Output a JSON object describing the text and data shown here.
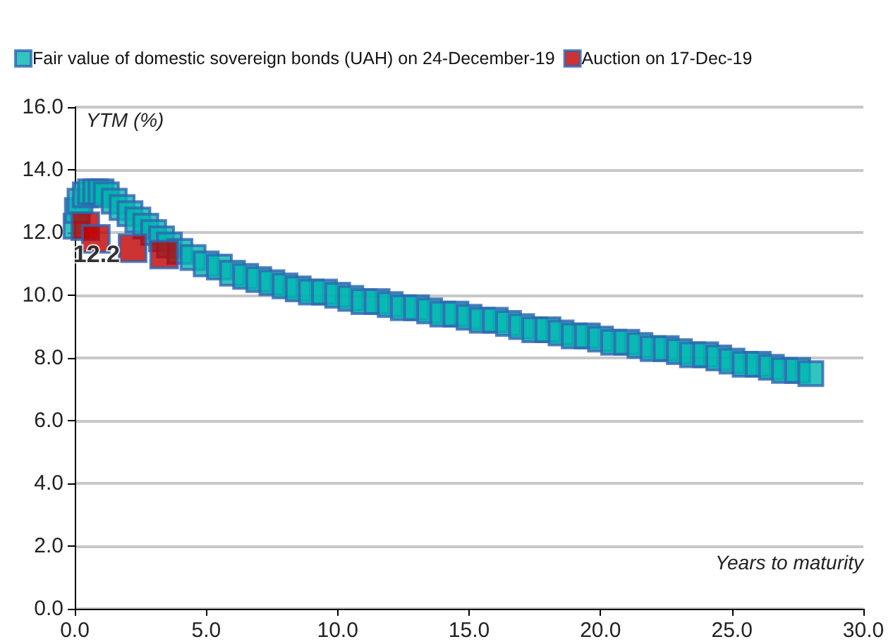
{
  "chart_data": {
    "type": "scatter",
    "xlabel": "Years to maturity",
    "ylabel": "YTM (%)",
    "xlim": [
      0,
      30
    ],
    "xticks": [
      {
        "value": 0,
        "label": "0.0"
      },
      {
        "value": 5,
        "label": "5.0"
      },
      {
        "value": 10,
        "label": "10.0"
      },
      {
        "value": 15,
        "label": "15.0"
      },
      {
        "value": 20,
        "label": "20.0"
      },
      {
        "value": 25,
        "label": "25.0"
      },
      {
        "value": 30,
        "label": "30.0"
      }
    ],
    "ylim": [
      0,
      16
    ],
    "yticks": [
      {
        "value": 0,
        "label": "0.0"
      },
      {
        "value": 2,
        "label": "2.0"
      },
      {
        "value": 4,
        "label": "4.0"
      },
      {
        "value": 6,
        "label": "6.0"
      },
      {
        "value": 8,
        "label": "8.0"
      },
      {
        "value": 10,
        "label": "10.0"
      },
      {
        "value": 12,
        "label": "12.0"
      },
      {
        "value": 14,
        "label": "14.0"
      },
      {
        "value": 16,
        "label": "16.0"
      }
    ],
    "grid": "y",
    "legend": "top left",
    "marker": "square",
    "series": [
      {
        "name": "Fair value of domestic sovereign bonds (UAH) on 24-December-19",
        "color": "#00b5b0",
        "x": [
          0.05,
          0.1,
          0.2,
          0.4,
          0.6,
          0.8,
          1.0,
          1.2,
          1.5,
          1.8,
          2.1,
          2.4,
          2.7,
          3.0,
          3.3,
          3.6,
          4.0,
          4.5,
          5.0,
          5.5,
          6.0,
          6.5,
          7.0,
          7.5,
          8.0,
          8.5,
          9.0,
          9.5,
          10.0,
          10.5,
          11.0,
          11.5,
          12.0,
          12.5,
          13.0,
          13.5,
          14.0,
          14.5,
          15.0,
          15.5,
          16.0,
          16.5,
          17.0,
          17.5,
          18.0,
          18.5,
          19.0,
          19.5,
          20.0,
          20.5,
          21.0,
          21.5,
          22.0,
          22.5,
          23.0,
          23.5,
          24.0,
          24.5,
          25.0,
          25.5,
          26.0,
          26.5,
          27.0,
          27.5,
          28.0
        ],
        "values": [
          12.2,
          12.7,
          13.0,
          13.2,
          13.3,
          13.3,
          13.3,
          13.2,
          13.0,
          12.8,
          12.6,
          12.4,
          12.2,
          12.0,
          11.8,
          11.6,
          11.4,
          11.2,
          11.0,
          10.9,
          10.7,
          10.6,
          10.5,
          10.4,
          10.3,
          10.2,
          10.1,
          10.1,
          10.0,
          9.9,
          9.8,
          9.8,
          9.7,
          9.6,
          9.6,
          9.5,
          9.4,
          9.4,
          9.3,
          9.2,
          9.2,
          9.1,
          9.0,
          8.9,
          8.9,
          8.8,
          8.7,
          8.7,
          8.6,
          8.5,
          8.5,
          8.4,
          8.3,
          8.3,
          8.2,
          8.1,
          8.1,
          8.0,
          7.9,
          7.8,
          7.8,
          7.7,
          7.6,
          7.6,
          7.5
        ]
      },
      {
        "name": "Auction on 17-Dec-19",
        "color": "#c00000",
        "x": [
          0.4,
          0.8,
          2.2,
          3.4
        ],
        "values": [
          12.2,
          11.8,
          11.5,
          11.3
        ]
      }
    ],
    "annotations": [
      {
        "text": "12.2",
        "x": 0.4,
        "y": 12.2
      }
    ]
  }
}
